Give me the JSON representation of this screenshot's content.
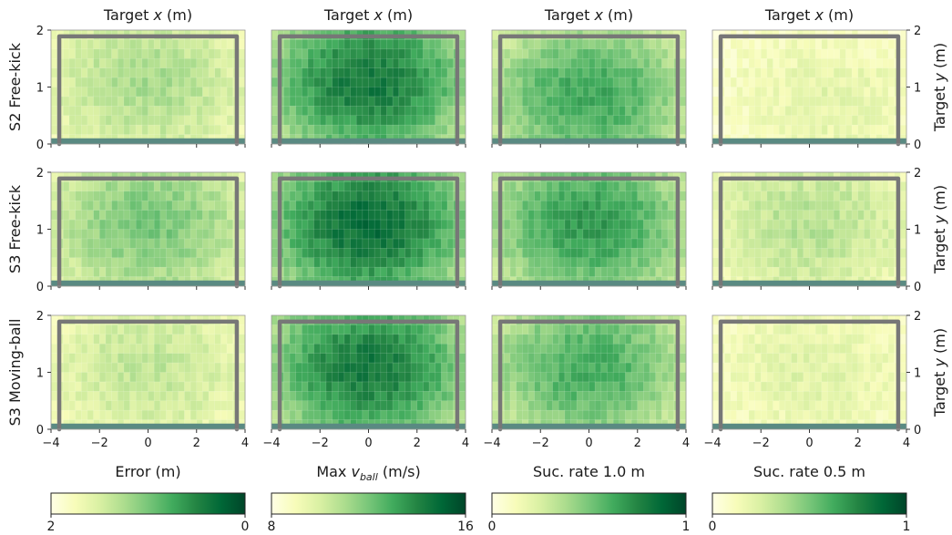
{
  "chart_data": {
    "type": "heatmap",
    "description": "3x4 grid of heatmaps of kick performance over a soccer goal mouth (target x vs target y)",
    "col_title": "Target x (m)",
    "col_title_var": "x",
    "col_title_unit": "(m)",
    "row_axis_label_prefix": "Target ",
    "row_axis_label_var": "y",
    "row_axis_label_unit": " (m)",
    "xlim": [
      -4,
      4
    ],
    "ylim": [
      0,
      2
    ],
    "xticks": [
      "−4",
      "−2",
      "0",
      "2",
      "4"
    ],
    "yticks": [
      "0",
      "1",
      "2"
    ],
    "rows": [
      "S2 Free-kick",
      "S3 Free-kick",
      "S3 Moving-ball"
    ],
    "columns": [
      {
        "label_plain": "Error (m)",
        "label_pre": "Max ",
        "label_var": "v",
        "label_sub": "ball",
        "label_post": " (m/s)",
        "cbar_min": "2",
        "cbar_max": "0",
        "use_sub": false
      },
      {
        "label_plain": "",
        "label_pre": "Max ",
        "label_var": "v",
        "label_sub": "ball",
        "label_post": " (m/s)",
        "cbar_min": "8",
        "cbar_max": "16",
        "use_sub": true
      },
      {
        "label_plain": "Suc. rate 1.0 m",
        "label_pre": "",
        "label_var": "",
        "label_sub": "",
        "label_post": "",
        "cbar_min": "0",
        "cbar_max": "1",
        "use_sub": false
      },
      {
        "label_plain": "Suc. rate 0.5 m",
        "label_pre": "",
        "label_var": "",
        "label_sub": "",
        "label_post": "",
        "cbar_min": "0",
        "cbar_max": "1",
        "use_sub": false
      }
    ],
    "intensity": [
      [
        0.38,
        0.8,
        0.62,
        0.25
      ],
      [
        0.5,
        0.85,
        0.68,
        0.35
      ],
      [
        0.32,
        0.8,
        0.62,
        0.22
      ]
    ],
    "colormap": [
      "#ffffe5",
      "#f7fcb9",
      "#d9f0a3",
      "#addd8e",
      "#78c679",
      "#41ab5d",
      "#238443",
      "#006837",
      "#004529"
    ],
    "goal_frame_color": "#777777",
    "ground_bar_color": "#5a8a82"
  }
}
